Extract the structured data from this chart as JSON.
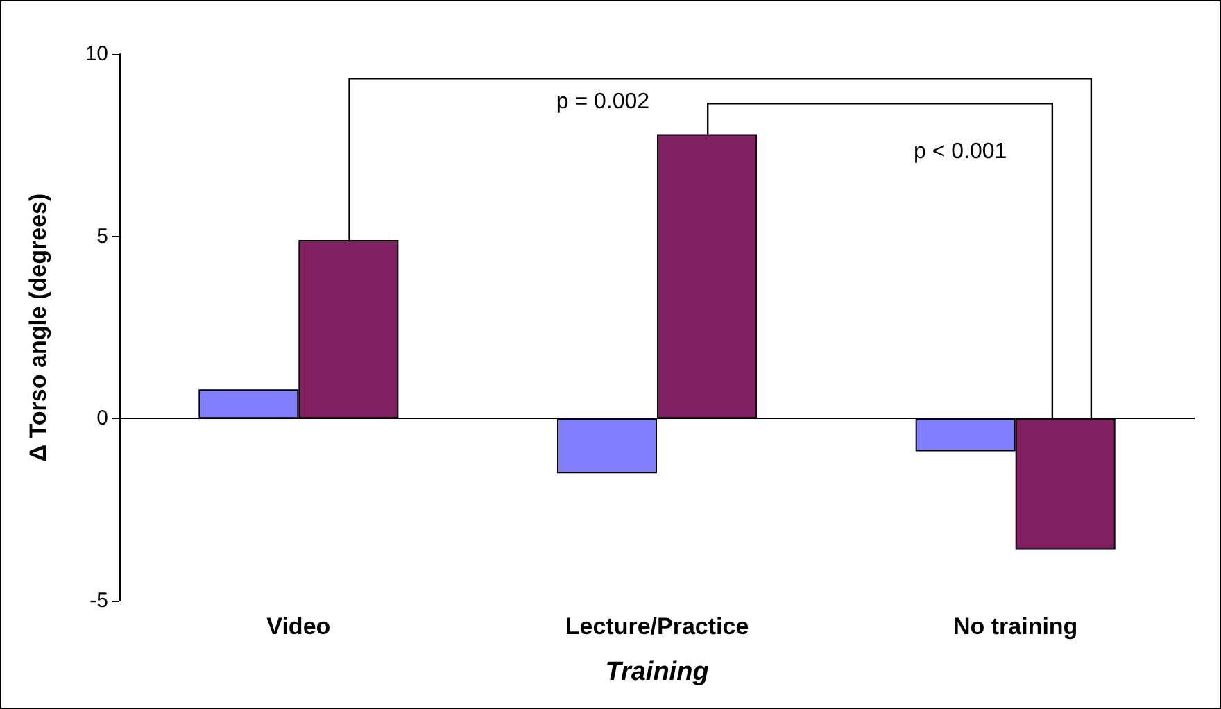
{
  "chart_data": {
    "type": "bar",
    "xlabel": "Training",
    "ylabel": "Δ Torso angle (degrees)",
    "categories": [
      "Video",
      "Lecture/Practice",
      "No training"
    ],
    "series": [
      {
        "color": "#8080ff",
        "values": [
          0.8,
          -1.5,
          -0.9
        ]
      },
      {
        "color": "#802060",
        "values": [
          4.9,
          7.8,
          -3.6
        ]
      }
    ],
    "ref_lines": [
      {
        "axis": "y",
        "value": 0,
        "color": "#000000",
        "line_style": "solid"
      }
    ],
    "ylim": [
      -5,
      10
    ],
    "yticks": [
      -5,
      0,
      5,
      10
    ],
    "annotations": [
      "p = 0.002",
      "p < 0.001"
    ]
  }
}
